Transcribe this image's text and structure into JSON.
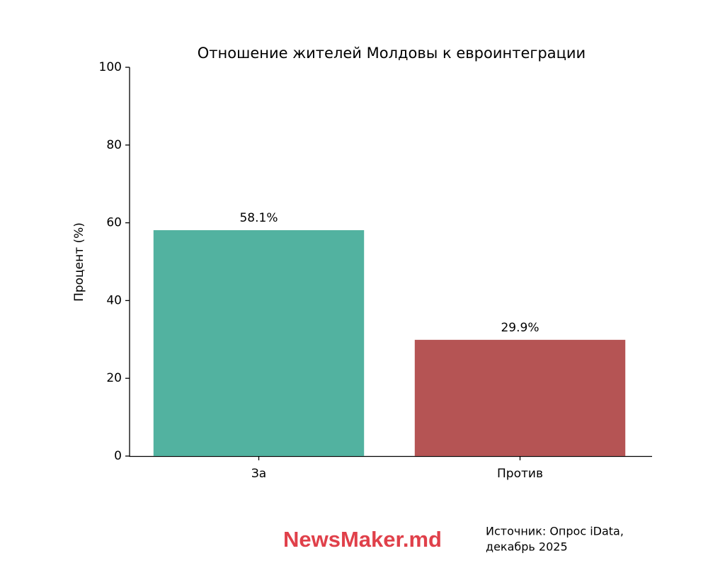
{
  "chart_data": {
    "type": "bar",
    "title": "Отношение жителей Молдовы к евроинтеграции",
    "ylabel": "Процент (%)",
    "categories": [
      "За",
      "Против"
    ],
    "values": [
      58.1,
      29.9
    ],
    "value_labels": [
      "58.1%",
      "29.9%"
    ],
    "colors": [
      "#52b2a0",
      "#b55454"
    ],
    "ylim": [
      0,
      100
    ],
    "yticks": [
      0,
      20,
      40,
      60,
      80,
      100
    ],
    "grid": false,
    "logo": "NewsMaker.md",
    "source": [
      "Источник: Опрос iData,",
      "декабрь 2025"
    ]
  }
}
